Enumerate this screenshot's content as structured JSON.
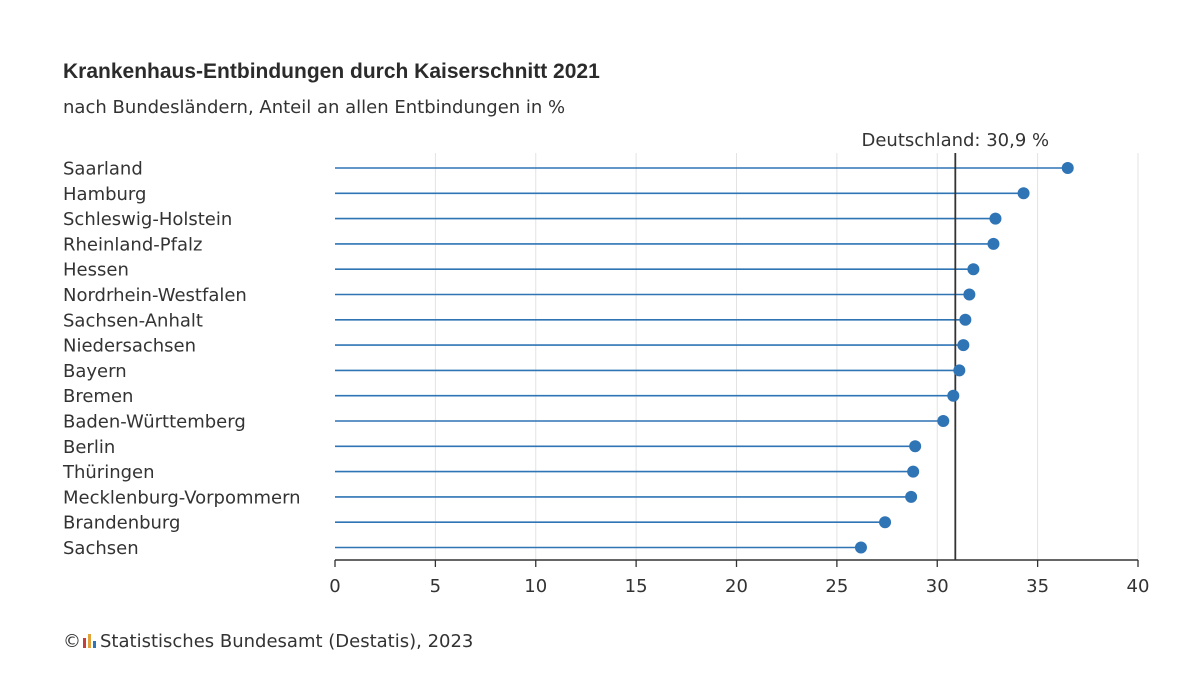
{
  "title": "Krankenhaus-Entbindungen durch Kaiserschnitt 2021",
  "subtitle": "nach Bundesländern, Anteil an allen Entbindungen in %",
  "footer": {
    "copyright_symbol": "©",
    "source": "Statistisches Bundesamt (Destatis), 2023",
    "logo_colors": [
      "#c63f3a",
      "#e1a23a",
      "#2f74b5"
    ]
  },
  "colors": {
    "series": "#2f74b5",
    "reference_line": "#333333",
    "grid": "#e3e3e3",
    "text": "#333333"
  },
  "chart_data": {
    "type": "lollipop",
    "title": "Krankenhaus-Entbindungen durch Kaiserschnitt 2021",
    "subtitle": "nach Bundesländern, Anteil an allen Entbindungen in %",
    "categories": [
      "Saarland",
      "Hamburg",
      "Schleswig-Holstein",
      "Rheinland-Pfalz",
      "Hessen",
      "Nordrhein-Westfalen",
      "Sachsen-Anhalt",
      "Niedersachsen",
      "Bayern",
      "Bremen",
      "Baden-Württemberg",
      "Berlin",
      "Thüringen",
      "Mecklenburg-Vorpommern",
      "Brandenburg",
      "Sachsen"
    ],
    "values": [
      36.5,
      34.3,
      32.9,
      32.8,
      31.8,
      31.6,
      31.4,
      31.3,
      31.1,
      30.8,
      30.3,
      28.9,
      28.8,
      28.7,
      27.4,
      26.2
    ],
    "xlim": [
      0,
      40
    ],
    "xticks": [
      0,
      5,
      10,
      15,
      20,
      25,
      30,
      35,
      40
    ],
    "grid": true,
    "reference": {
      "label": "Deutschland: 30,9 %",
      "value": 30.9
    }
  }
}
